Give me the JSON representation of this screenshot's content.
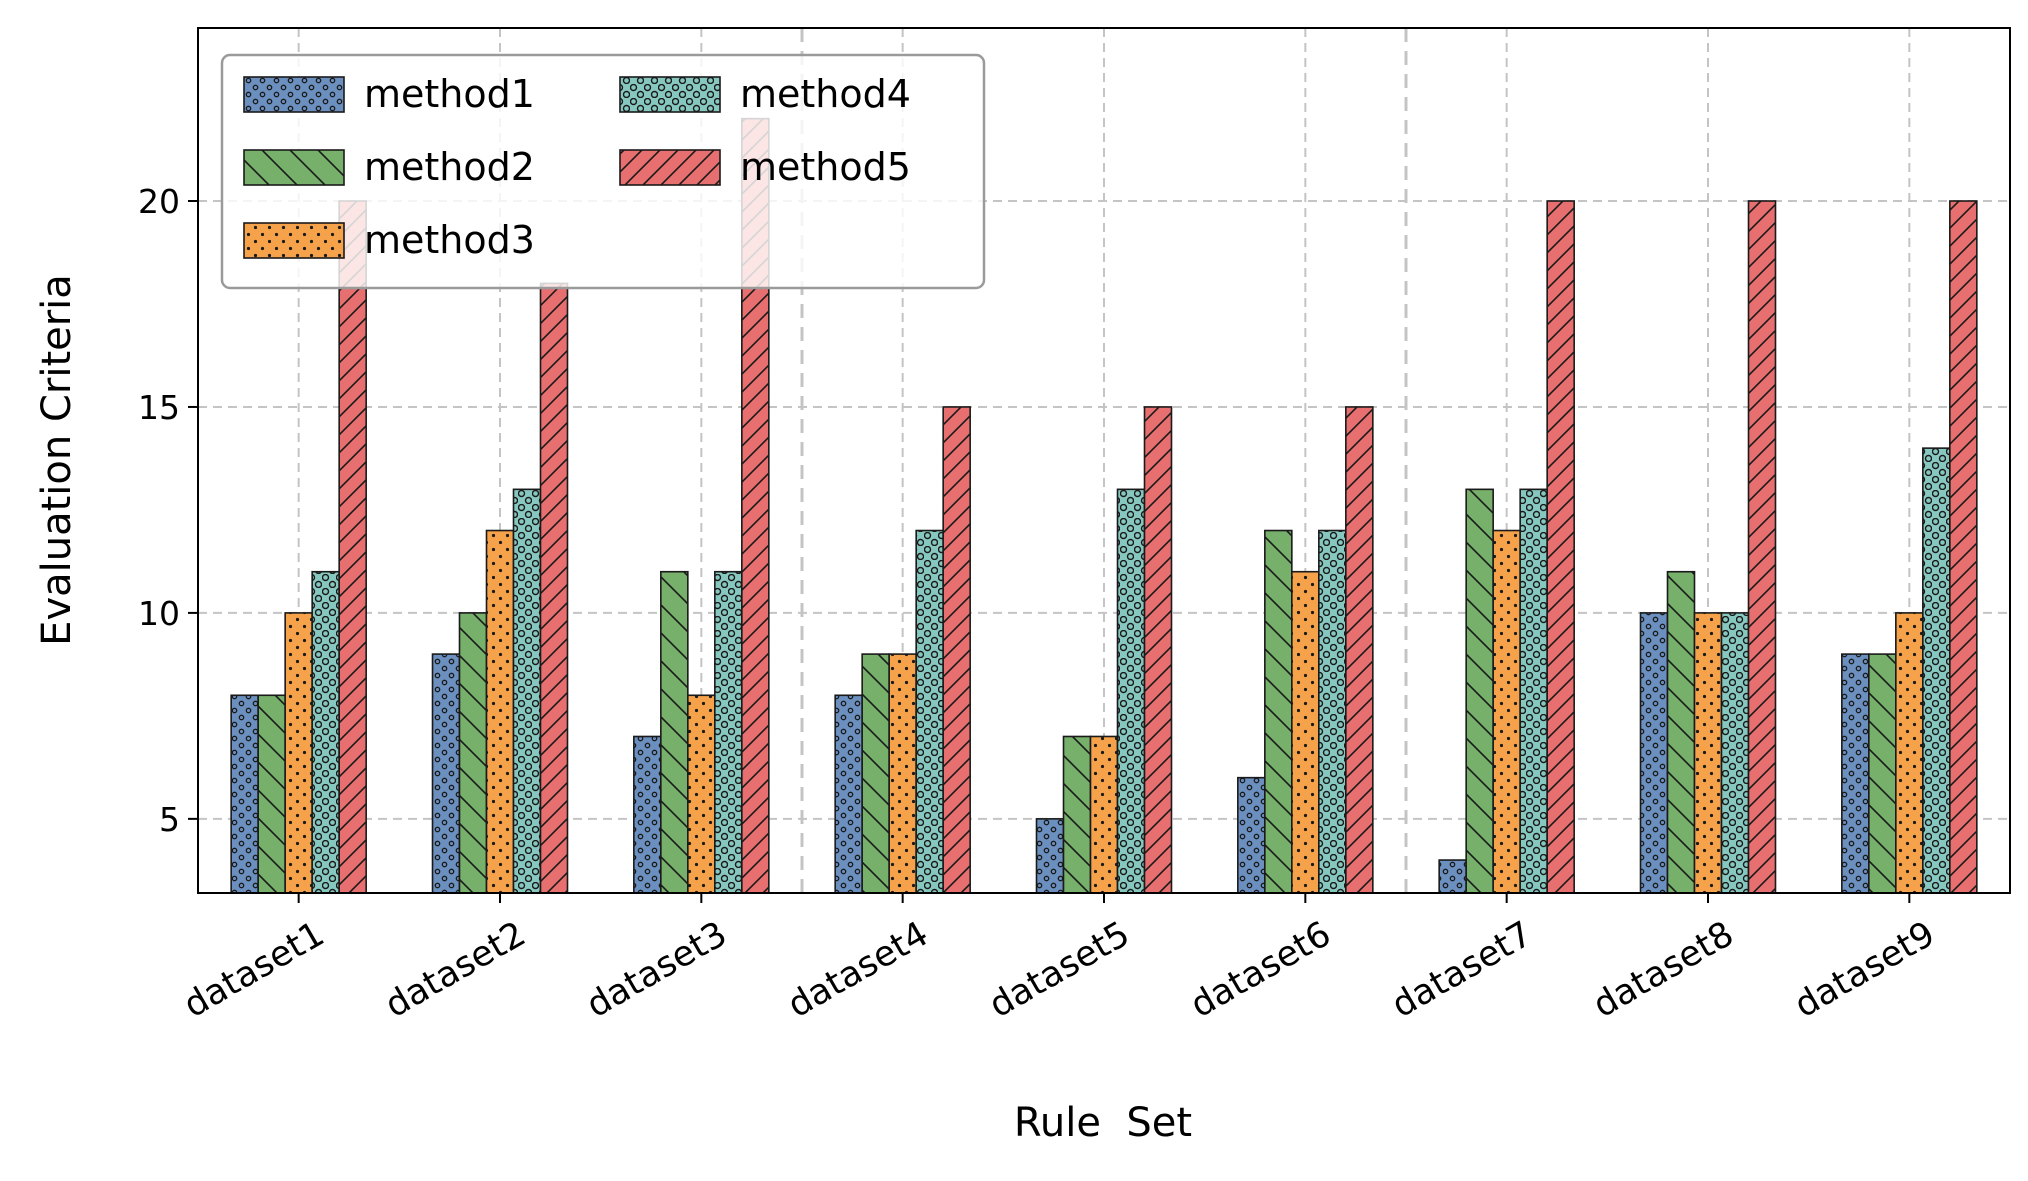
{
  "chart_data": {
    "type": "bar",
    "title": "",
    "xlabel": "Rule  Set",
    "ylabel": "Evaluation Criteria",
    "categories": [
      "dataset1",
      "dataset2",
      "dataset3",
      "dataset4",
      "dataset5",
      "dataset6",
      "dataset7",
      "dataset8",
      "dataset9"
    ],
    "series": [
      {
        "name": "method1",
        "color": "#6b8fbf",
        "pattern": "small-circles",
        "values": [
          8,
          9,
          7,
          8,
          5,
          6,
          4,
          10,
          9
        ]
      },
      {
        "name": "method2",
        "color": "#76b06b",
        "pattern": "backslash",
        "values": [
          8,
          10,
          11,
          9,
          7,
          12,
          13,
          11,
          9
        ]
      },
      {
        "name": "method3",
        "color": "#f5a24b",
        "pattern": "dots",
        "values": [
          10,
          12,
          8,
          9,
          7,
          11,
          12,
          10,
          10
        ]
      },
      {
        "name": "method4",
        "color": "#86c8bf",
        "pattern": "rings",
        "values": [
          11,
          13,
          11,
          12,
          13,
          12,
          13,
          10,
          14
        ]
      },
      {
        "name": "method5",
        "color": "#e86f6f",
        "pattern": "slash",
        "values": [
          20,
          18,
          22,
          15,
          15,
          15,
          20,
          20,
          20
        ]
      }
    ],
    "ylim": [
      3.2,
      24.2
    ],
    "yticks": [
      5,
      10,
      15,
      20
    ],
    "grid": true,
    "group_separators_after": [
      "dataset3",
      "dataset6"
    ],
    "legend": {
      "placement": "top-left",
      "columns": 2
    }
  }
}
